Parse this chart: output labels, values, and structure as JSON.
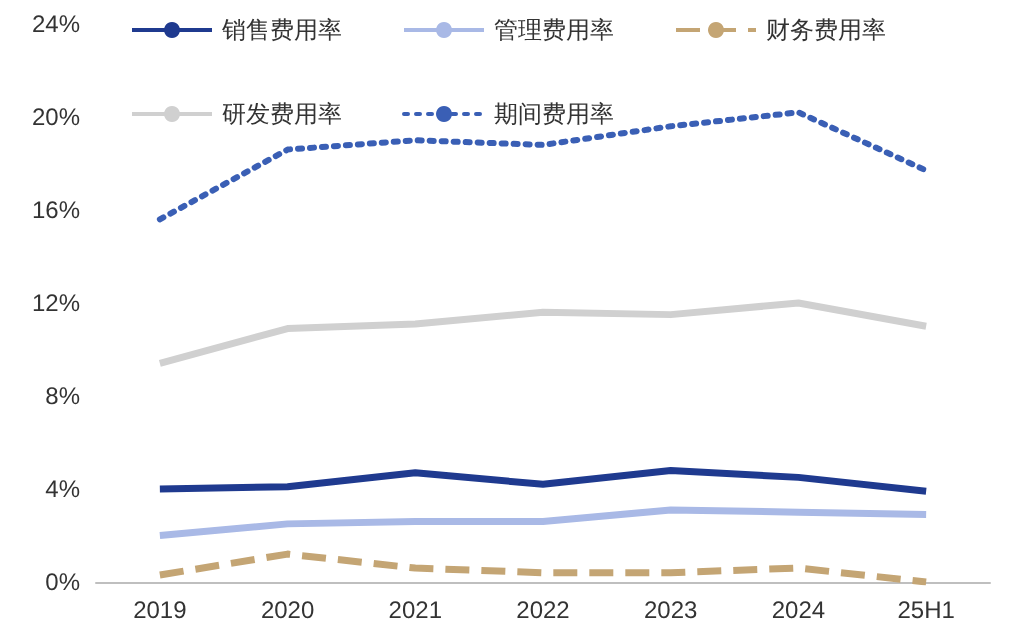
{
  "chart_data": {
    "type": "line",
    "categories": [
      "2019",
      "2020",
      "2021",
      "2022",
      "2023",
      "2024",
      "25H1"
    ],
    "series": [
      {
        "name": "销售费用率",
        "color": "#1f3a8f",
        "line_style": "solid",
        "values": [
          4.0,
          4.1,
          4.7,
          4.2,
          4.8,
          4.5,
          3.9
        ]
      },
      {
        "name": "管理费用率",
        "color": "#a9b9e6",
        "line_style": "solid",
        "values": [
          2.0,
          2.5,
          2.6,
          2.6,
          3.1,
          3.0,
          2.9
        ]
      },
      {
        "name": "财务费用率",
        "color": "#c4a574",
        "line_style": "dashed",
        "values": [
          0.3,
          1.2,
          0.6,
          0.4,
          0.4,
          0.6,
          0.0
        ]
      },
      {
        "name": "研发费用率",
        "color": "#d0d0d0",
        "line_style": "solid",
        "values": [
          9.4,
          10.9,
          11.1,
          11.6,
          11.5,
          12.0,
          11.0
        ]
      },
      {
        "name": "期间费用率",
        "color": "#3a5fb5",
        "line_style": "dotted",
        "values": [
          15.6,
          18.6,
          19.0,
          18.8,
          19.6,
          20.2,
          17.7
        ]
      }
    ],
    "ylim": [
      0,
      24
    ],
    "yticks": [
      {
        "value": 0,
        "label": "0%"
      },
      {
        "value": 4,
        "label": "4%"
      },
      {
        "value": 8,
        "label": "8%"
      },
      {
        "value": 12,
        "label": "12%"
      },
      {
        "value": 16,
        "label": "16%"
      },
      {
        "value": 20,
        "label": "20%"
      },
      {
        "value": 24,
        "label": "24%"
      }
    ],
    "grid": false,
    "legend": "top",
    "marker": "none"
  }
}
